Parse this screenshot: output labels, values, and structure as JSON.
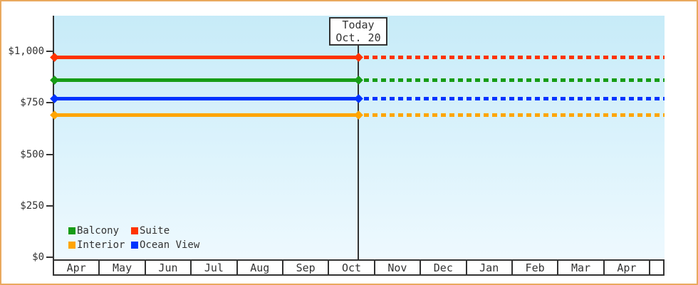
{
  "chart_data": {
    "type": "line",
    "title": "",
    "description": "Cabin price history by category: solid horizontal lines up to today marker, dashed projection lines after today",
    "x_axis": {
      "months": [
        "Apr",
        "May",
        "Jun",
        "Jul",
        "Aug",
        "Sep",
        "Oct",
        "Nov",
        "Dec",
        "Jan",
        "Feb",
        "Mar",
        "Apr"
      ]
    },
    "y_axis": {
      "tick_labels": [
        "$0",
        "$250",
        "$500",
        "$750",
        "$1,000"
      ],
      "tick_values": [
        0,
        250,
        500,
        750,
        1000
      ],
      "ylim": [
        0,
        1050
      ],
      "currency": "USD"
    },
    "series": [
      {
        "name": "Suite",
        "color": "#ff3300",
        "value": 970
      },
      {
        "name": "Balcony",
        "color": "#169c16",
        "value": 860
      },
      {
        "name": "Ocean View",
        "color": "#0033ff",
        "value": 770
      },
      {
        "name": "Interior",
        "color": "#ffa500",
        "value": 690
      }
    ],
    "today": {
      "line1": "Today",
      "line2": "Oct. 20",
      "month_index": 6,
      "day": 20
    },
    "legend": {
      "position": "bottom-left",
      "items": [
        {
          "label": "Balcony",
          "color": "#169c16"
        },
        {
          "label": "Suite",
          "color": "#ff3300"
        },
        {
          "label": "Interior",
          "color": "#ffa500"
        },
        {
          "label": "Ocean View",
          "color": "#0033ff"
        }
      ]
    },
    "grid": false,
    "frame_border_color": "#e9a95f"
  }
}
